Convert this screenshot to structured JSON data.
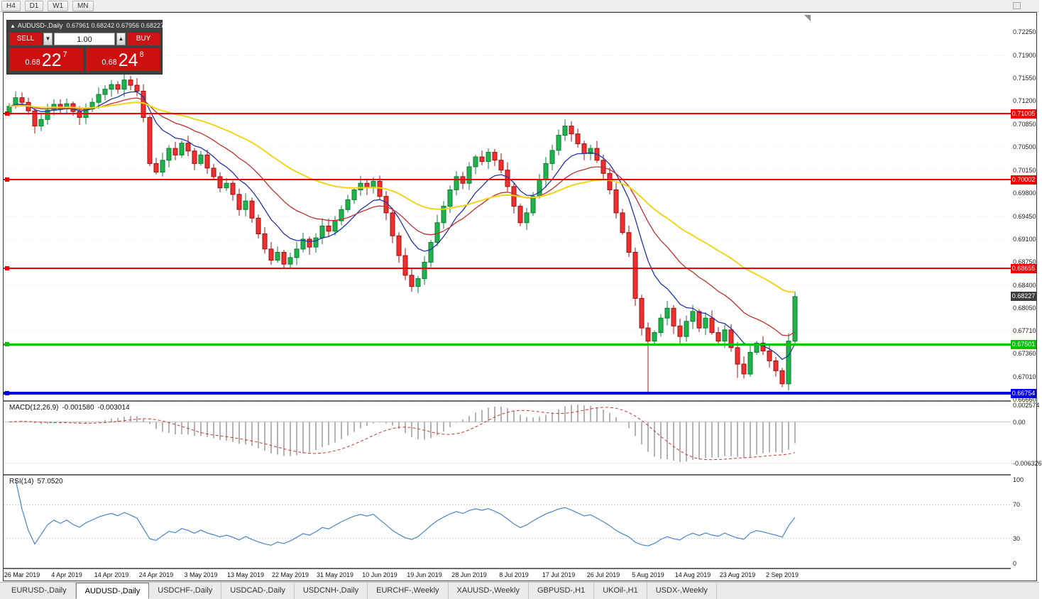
{
  "toolbar": {
    "buttons": [
      "H4",
      "D1",
      "W1",
      "MN"
    ]
  },
  "trade_panel": {
    "collapse_icon": "▲",
    "symbol_title": "AUDUSD-,Daily",
    "ohlc": "0.67961 0.68242 0.67956 0.68227",
    "sell_label": "SELL",
    "buy_label": "BUY",
    "volume": "1.00",
    "spinner_down_icon": "▼",
    "spinner_up_icon": "▲",
    "sell_price_main": "0.68",
    "sell_price_big": "22",
    "sell_price_sup": "7",
    "buy_price_main": "0.68",
    "buy_price_big": "24",
    "buy_price_sup": "8"
  },
  "price_axis": {
    "ticks": [
      "0.72250",
      "0.71900",
      "0.71550",
      "0.71200",
      "0.70850",
      "0.70500",
      "0.70150",
      "0.69800",
      "0.69450",
      "0.69100",
      "0.68750",
      "0.68400",
      "0.68050",
      "0.67710",
      "0.67360",
      "0.67010",
      "0.66660"
    ],
    "current": "0.68227",
    "current_value": 0.68227
  },
  "hlines": [
    {
      "price": 0.71005,
      "label": "0.71005",
      "color": "#f00000",
      "thickness": 2
    },
    {
      "price": 0.70002,
      "label": "0.70002",
      "color": "#f00000",
      "thickness": 2
    },
    {
      "price": 0.68655,
      "label": "0.68655",
      "color": "#f00000",
      "thickness": 2
    },
    {
      "price": 0.67501,
      "label": "0.67501",
      "color": "#00c400",
      "thickness": 3
    },
    {
      "price": 0.66754,
      "label": "0.66754",
      "color": "#0000dd",
      "thickness": 4
    }
  ],
  "chart_data": {
    "type": "candlestick",
    "symbol": "AUDUSD",
    "timeframe": "Daily",
    "title": "AUDUSD-,Daily",
    "ohlc_display": "0.67961 0.68242 0.67956 0.68227",
    "first_open": 0.71,
    "closes": [
      0.7112,
      0.7125,
      0.7118,
      0.7105,
      0.7082,
      0.7092,
      0.7106,
      0.7115,
      0.7108,
      0.7116,
      0.7104,
      0.7095,
      0.7108,
      0.7118,
      0.713,
      0.7138,
      0.7145,
      0.7138,
      0.7152,
      0.7144,
      0.7135,
      0.7095,
      0.7025,
      0.7012,
      0.703,
      0.7048,
      0.7038,
      0.7056,
      0.7044,
      0.7025,
      0.7038,
      0.7018,
      0.7005,
      0.6988,
      0.6995,
      0.6978,
      0.6955,
      0.6968,
      0.6942,
      0.6918,
      0.6895,
      0.6878,
      0.689,
      0.6872,
      0.6882,
      0.6895,
      0.691,
      0.6898,
      0.6912,
      0.693,
      0.6922,
      0.6938,
      0.6955,
      0.697,
      0.6985,
      0.6995,
      0.6988,
      0.6998,
      0.6975,
      0.695,
      0.6915,
      0.6885,
      0.6855,
      0.6838,
      0.685,
      0.6875,
      0.6905,
      0.6935,
      0.696,
      0.6985,
      0.7005,
      0.6995,
      0.702,
      0.7035,
      0.7028,
      0.7042,
      0.703,
      0.7015,
      0.699,
      0.696,
      0.6935,
      0.695,
      0.6975,
      0.7,
      0.7025,
      0.7045,
      0.7068,
      0.7082,
      0.707,
      0.7055,
      0.704,
      0.7048,
      0.703,
      0.701,
      0.6985,
      0.695,
      0.692,
      0.689,
      0.682,
      0.6775,
      0.6755,
      0.6768,
      0.679,
      0.6805,
      0.6778,
      0.6762,
      0.6785,
      0.68,
      0.6775,
      0.679,
      0.6768,
      0.6755,
      0.6772,
      0.6745,
      0.672,
      0.6705,
      0.6738,
      0.6752,
      0.674,
      0.6725,
      0.671,
      0.669,
      0.6755,
      0.68227
    ],
    "wick_overrides": {
      "19": [
        0.7158,
        null
      ],
      "63": [
        null,
        0.683
      ],
      "87": [
        0.7092,
        null
      ],
      "100": [
        null,
        0.6677
      ],
      "114": [
        null,
        0.6699
      ],
      "121": [
        null,
        0.6685
      ],
      "123": [
        0.683,
        null
      ]
    },
    "x_tick_indices": [
      2,
      9,
      16,
      23,
      30,
      37,
      44,
      51,
      58,
      65,
      72,
      79,
      86,
      93,
      100,
      107,
      114,
      121
    ],
    "x_tick_labels": [
      "26 Mar 2019",
      "4 Apr 2019",
      "14 Apr 2019",
      "24 Apr 2019",
      "3 May 2019",
      "13 May 2019",
      "22 May 2019",
      "31 May 2019",
      "10 Jun 2019",
      "19 Jun 2019",
      "28 Jun 2019",
      "8 Jul 2019",
      "17 Jul 2019",
      "26 Jul 2019",
      "5 Aug 2019",
      "14 Aug 2019",
      "23 Aug 2019",
      "2 Sep 2019"
    ],
    "price_range": {
      "top": 0.72542,
      "bottom": 0.6665
    },
    "moving_averages": [
      {
        "name": "fast-ma",
        "period": 9,
        "color": "#2233ae",
        "width": 1.3
      },
      {
        "name": "medium-ma",
        "period": 20,
        "color": "#c03030",
        "width": 1.3
      },
      {
        "name": "slow-ma",
        "period": 45,
        "color": "#f2d41c",
        "width": 2
      }
    ],
    "current_price": 0.68227
  },
  "macd": {
    "label": "MACD(12,26,9)",
    "main_value": "-0.001580",
    "signal_value": "-0.003014",
    "fast": 12,
    "slow": 26,
    "signal": 9,
    "axis_labels": [
      {
        "text": "0.002574",
        "value": 0.002574
      },
      {
        "text": "0.00",
        "value": 0
      },
      {
        "text": "-0.006326",
        "value": -0.006326
      }
    ],
    "range": {
      "top": 0.0031,
      "bottom": -0.008
    }
  },
  "rsi": {
    "label": "RSI(14)",
    "value": "57.0520",
    "period": 14,
    "axis_labels": [
      {
        "text": "100",
        "value": 100
      },
      {
        "text": "70",
        "value": 70
      },
      {
        "text": "30",
        "value": 30
      },
      {
        "text": "0",
        "value": 0
      }
    ],
    "levels": [
      70,
      30
    ]
  },
  "tabs": [
    {
      "label": "EURUSD-,Daily",
      "active": false
    },
    {
      "label": "AUDUSD-,Daily",
      "active": true
    },
    {
      "label": "USDCHF-,Daily",
      "active": false
    },
    {
      "label": "USDCAD-,Daily",
      "active": false
    },
    {
      "label": "USDCNH-,Daily",
      "active": false
    },
    {
      "label": "EURCHF-,Weekly",
      "active": false
    },
    {
      "label": "XAUUSD-,Weekly",
      "active": false
    },
    {
      "label": "GBPUSD-,H1",
      "active": false
    },
    {
      "label": "UKOil-,H1",
      "active": false
    },
    {
      "label": "USDX-,Weekly",
      "active": false
    }
  ],
  "colors": {
    "bull_fill": "#21b24b",
    "bull_stroke": "#0b7d34",
    "bear_fill": "#f03030",
    "bear_stroke": "#9c1111",
    "grid": "#ebebeb",
    "badge_current_bg": "#3d3d3d",
    "macd_bar": "#b3b3b3",
    "macd_signal": "#cc3333",
    "rsi_line": "#4a86c8"
  }
}
